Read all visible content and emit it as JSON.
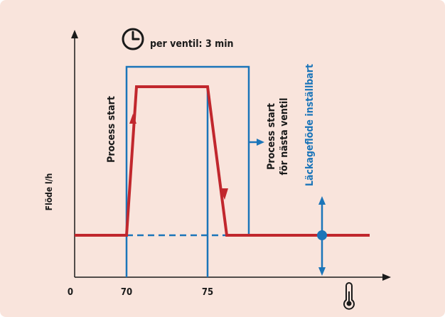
{
  "colors": {
    "background": "#f9e4dc",
    "axis": "#1a1a1a",
    "process_line": "#c1272d",
    "valve_line": "#1b75b9",
    "text": "#1a1a1a"
  },
  "timer": {
    "icon": "clock-icon",
    "label": "per ventil: 3 min"
  },
  "axis": {
    "ylabel": "Flöde l/h",
    "x_icon": "thermometer-icon",
    "x_ticks": [
      "0",
      "70",
      "75"
    ]
  },
  "annotations": {
    "process_start": "Process start",
    "next_valve_line1": "Process start",
    "next_valve_line2": "för nästa ventil",
    "leakage": "Läckageflöde inställbart"
  }
}
